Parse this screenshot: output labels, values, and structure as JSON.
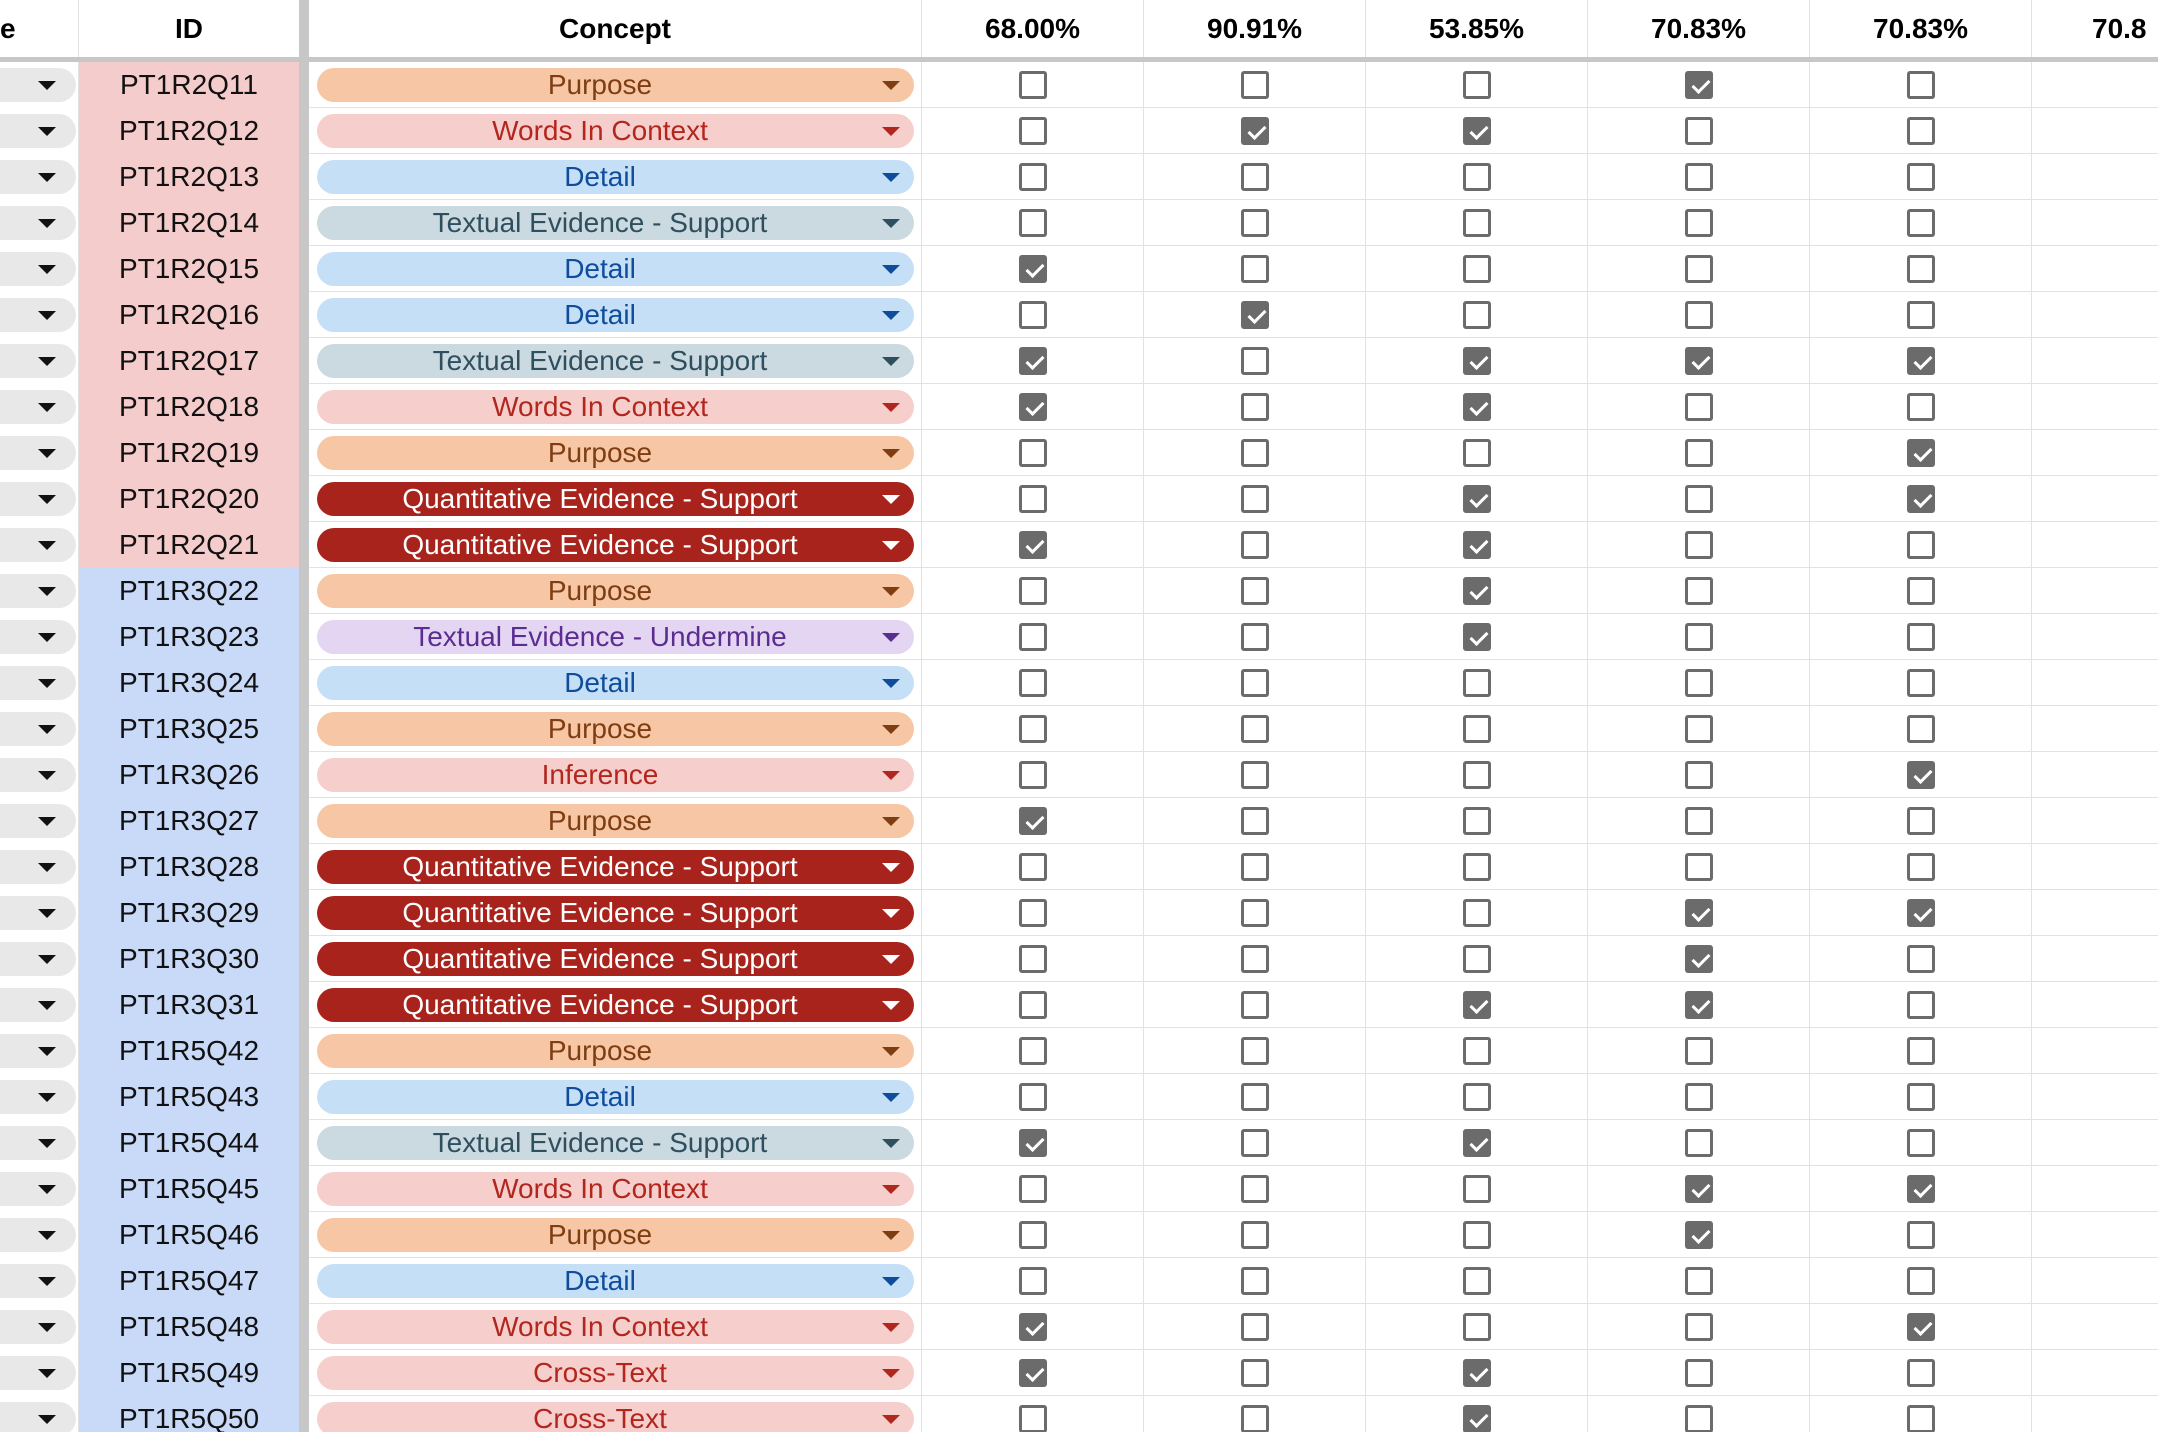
{
  "header": {
    "col_a": "e",
    "col_id": "ID",
    "col_concept": "Concept",
    "pct": [
      "68.00%",
      "90.91%",
      "53.85%",
      "70.83%",
      "70.83%",
      "70.8"
    ]
  },
  "colors": {
    "purpose": {
      "bg": "#f6c6a5",
      "fg": "#7f3d12"
    },
    "words_in_context": {
      "bg": "#f6cfcc",
      "fg": "#b3261e"
    },
    "detail": {
      "bg": "#c5dff7",
      "fg": "#0f4c9c"
    },
    "textual_support": {
      "bg": "#cbd9e0",
      "fg": "#2f4f5e"
    },
    "quant_support": {
      "bg": "#a8231b",
      "fg": "#ffffff"
    },
    "textual_undermine": {
      "bg": "#e4d6f3",
      "fg": "#5b2d91"
    },
    "inference": {
      "bg": "#f6cfcc",
      "fg": "#b3261e"
    },
    "cross_text": {
      "bg": "#f6cfcc",
      "fg": "#b3261e"
    },
    "id_red_group": "#f4cccc",
    "id_blue_group": "#c9daf8"
  },
  "rows": [
    {
      "id": "PT1R2Q11",
      "group": "red",
      "concept": "Purpose",
      "style": "purpose",
      "checks": [
        false,
        false,
        false,
        true,
        false
      ]
    },
    {
      "id": "PT1R2Q12",
      "group": "red",
      "concept": "Words In Context",
      "style": "words_in_context",
      "checks": [
        false,
        true,
        true,
        false,
        false
      ]
    },
    {
      "id": "PT1R2Q13",
      "group": "red",
      "concept": "Detail",
      "style": "detail",
      "checks": [
        false,
        false,
        false,
        false,
        false
      ]
    },
    {
      "id": "PT1R2Q14",
      "group": "red",
      "concept": "Textual Evidence - Support",
      "style": "textual_support",
      "checks": [
        false,
        false,
        false,
        false,
        false
      ]
    },
    {
      "id": "PT1R2Q15",
      "group": "red",
      "concept": "Detail",
      "style": "detail",
      "checks": [
        true,
        false,
        false,
        false,
        false
      ]
    },
    {
      "id": "PT1R2Q16",
      "group": "red",
      "concept": "Detail",
      "style": "detail",
      "checks": [
        false,
        true,
        false,
        false,
        false
      ]
    },
    {
      "id": "PT1R2Q17",
      "group": "red",
      "concept": "Textual Evidence - Support",
      "style": "textual_support",
      "checks": [
        true,
        false,
        true,
        true,
        true
      ]
    },
    {
      "id": "PT1R2Q18",
      "group": "red",
      "concept": "Words In Context",
      "style": "words_in_context",
      "checks": [
        true,
        false,
        true,
        false,
        false
      ]
    },
    {
      "id": "PT1R2Q19",
      "group": "red",
      "concept": "Purpose",
      "style": "purpose",
      "checks": [
        false,
        false,
        false,
        false,
        true
      ]
    },
    {
      "id": "PT1R2Q20",
      "group": "red",
      "concept": "Quantitative Evidence - Support",
      "style": "quant_support",
      "checks": [
        false,
        false,
        true,
        false,
        true
      ]
    },
    {
      "id": "PT1R2Q21",
      "group": "red",
      "concept": "Quantitative Evidence - Support",
      "style": "quant_support",
      "checks": [
        true,
        false,
        true,
        false,
        false
      ]
    },
    {
      "id": "PT1R3Q22",
      "group": "blue",
      "concept": "Purpose",
      "style": "purpose",
      "checks": [
        false,
        false,
        true,
        false,
        false
      ]
    },
    {
      "id": "PT1R3Q23",
      "group": "blue",
      "concept": "Textual Evidence - Undermine",
      "style": "textual_undermine",
      "checks": [
        false,
        false,
        true,
        false,
        false
      ]
    },
    {
      "id": "PT1R3Q24",
      "group": "blue",
      "concept": "Detail",
      "style": "detail",
      "checks": [
        false,
        false,
        false,
        false,
        false
      ]
    },
    {
      "id": "PT1R3Q25",
      "group": "blue",
      "concept": "Purpose",
      "style": "purpose",
      "checks": [
        false,
        false,
        false,
        false,
        false
      ]
    },
    {
      "id": "PT1R3Q26",
      "group": "blue",
      "concept": "Inference",
      "style": "inference",
      "checks": [
        false,
        false,
        false,
        false,
        true
      ]
    },
    {
      "id": "PT1R3Q27",
      "group": "blue",
      "concept": "Purpose",
      "style": "purpose",
      "checks": [
        true,
        false,
        false,
        false,
        false
      ]
    },
    {
      "id": "PT1R3Q28",
      "group": "blue",
      "concept": "Quantitative Evidence - Support",
      "style": "quant_support",
      "checks": [
        false,
        false,
        false,
        false,
        false
      ]
    },
    {
      "id": "PT1R3Q29",
      "group": "blue",
      "concept": "Quantitative Evidence - Support",
      "style": "quant_support",
      "checks": [
        false,
        false,
        false,
        true,
        true
      ]
    },
    {
      "id": "PT1R3Q30",
      "group": "blue",
      "concept": "Quantitative Evidence - Support",
      "style": "quant_support",
      "checks": [
        false,
        false,
        false,
        true,
        false
      ]
    },
    {
      "id": "PT1R3Q31",
      "group": "blue",
      "concept": "Quantitative Evidence - Support",
      "style": "quant_support",
      "checks": [
        false,
        false,
        true,
        true,
        false
      ]
    },
    {
      "id": "PT1R5Q42",
      "group": "blue",
      "concept": "Purpose",
      "style": "purpose",
      "checks": [
        false,
        false,
        false,
        false,
        false
      ]
    },
    {
      "id": "PT1R5Q43",
      "group": "blue",
      "concept": "Detail",
      "style": "detail",
      "checks": [
        false,
        false,
        false,
        false,
        false
      ]
    },
    {
      "id": "PT1R5Q44",
      "group": "blue",
      "concept": "Textual Evidence - Support",
      "style": "textual_support",
      "checks": [
        true,
        false,
        true,
        false,
        false
      ]
    },
    {
      "id": "PT1R5Q45",
      "group": "blue",
      "concept": "Words In Context",
      "style": "words_in_context",
      "checks": [
        false,
        false,
        false,
        true,
        true
      ]
    },
    {
      "id": "PT1R5Q46",
      "group": "blue",
      "concept": "Purpose",
      "style": "purpose",
      "checks": [
        false,
        false,
        false,
        true,
        false
      ]
    },
    {
      "id": "PT1R5Q47",
      "group": "blue",
      "concept": "Detail",
      "style": "detail",
      "checks": [
        false,
        false,
        false,
        false,
        false
      ]
    },
    {
      "id": "PT1R5Q48",
      "group": "blue",
      "concept": "Words In Context",
      "style": "words_in_context",
      "checks": [
        true,
        false,
        false,
        false,
        true
      ]
    },
    {
      "id": "PT1R5Q49",
      "group": "blue",
      "concept": "Cross-Text",
      "style": "cross_text",
      "checks": [
        true,
        false,
        true,
        false,
        false
      ]
    },
    {
      "id": "PT1R5Q50",
      "group": "blue",
      "concept": "Cross-Text",
      "style": "cross_text",
      "checks": [
        false,
        false,
        true,
        false,
        false
      ]
    }
  ]
}
